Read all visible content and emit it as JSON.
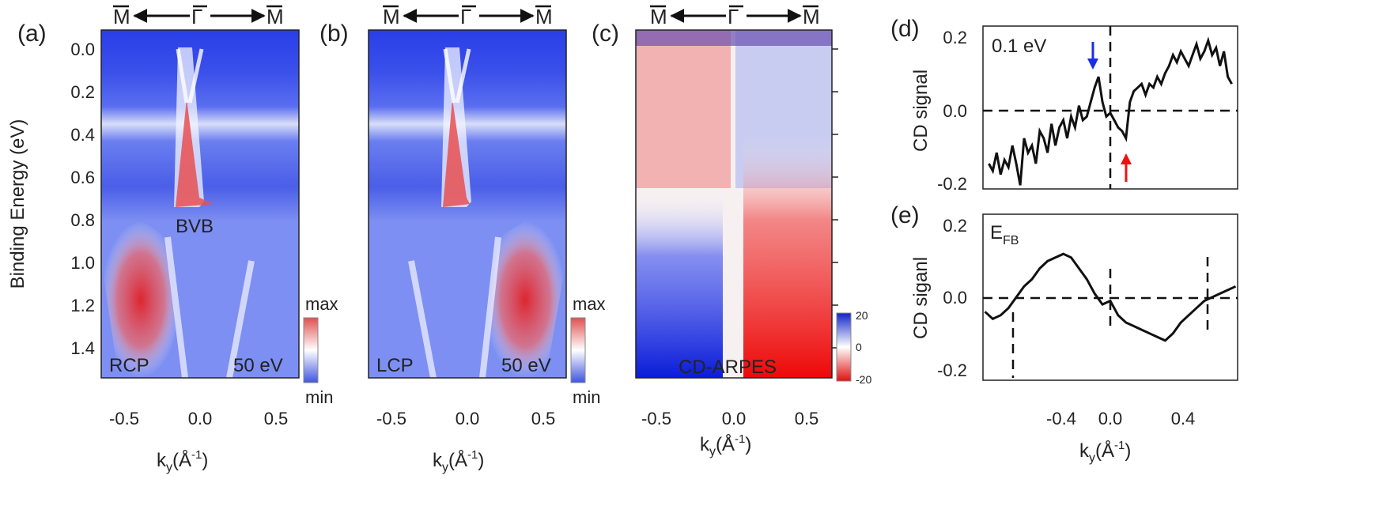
{
  "direction": {
    "left": "M",
    "center": "Γ",
    "right": "M"
  },
  "common": {
    "y_axis_label": "Binding Energy (eV)",
    "x_axis_k": "k",
    "x_axis_sub": "y",
    "x_axis_unit_open": "(Å",
    "x_axis_unit_exp": "-1",
    "x_axis_unit_close": ")"
  },
  "panels": {
    "a": {
      "label": "(a)",
      "pol": "RCP",
      "energy": "50 eV",
      "band_label": "BVB",
      "cbar_max": "max",
      "cbar_min": "min"
    },
    "b": {
      "label": "(b)",
      "pol": "LCP",
      "energy": "50 eV",
      "cbar_max": "max",
      "cbar_min": "min"
    },
    "c": {
      "label": "(c)",
      "title": "CD-ARPES",
      "cbar_ticks": [
        "20",
        "0",
        "-20"
      ]
    },
    "d": {
      "label": "(d)",
      "annotation": "0.1 eV",
      "ylabel": "CD signal"
    },
    "e": {
      "label": "(e)",
      "annotation_main": "E",
      "annotation_sub": "FB",
      "ylabel": "CD siganl"
    }
  },
  "colors": {
    "blue": "#1a2ee6",
    "red": "#ee1111",
    "white": "#ffffff",
    "trace": "#111111"
  },
  "chart_data": [
    {
      "id": "a",
      "type": "heatmap",
      "title": "RCP",
      "xlabel": "ky(Å-1)",
      "ylabel": "Binding Energy (eV)",
      "xlim": [
        -0.65,
        0.65
      ],
      "ylim": [
        1.52,
        -0.1
      ],
      "xticks": [
        "-0.5",
        "0.0",
        "0.5"
      ],
      "yticks": [
        "0.0",
        "0.2",
        "0.4",
        "0.6",
        "0.8",
        "1.0",
        "1.2",
        "1.4"
      ],
      "colorbar": [
        "min",
        "max"
      ]
    },
    {
      "id": "b",
      "type": "heatmap",
      "title": "LCP",
      "xlabel": "ky(Å-1)",
      "xlim": [
        -0.65,
        0.65
      ],
      "ylim": [
        1.52,
        -0.1
      ],
      "xticks": [
        "-0.5",
        "0.0",
        "0.5"
      ],
      "colorbar": [
        "min",
        "max"
      ]
    },
    {
      "id": "c",
      "type": "heatmap",
      "title": "CD-ARPES",
      "xlabel": "ky(Å-1)",
      "xlim": [
        -0.65,
        0.65
      ],
      "ylim": [
        1.52,
        -0.1
      ],
      "xticks": [
        "-0.5",
        "0.0",
        "0.5"
      ],
      "colorbar": [
        -20,
        0,
        20
      ]
    },
    {
      "id": "d",
      "type": "line",
      "title": "0.1 eV",
      "ylabel": "CD signal",
      "xlim": [
        -0.65,
        0.65
      ],
      "ylim": [
        -0.22,
        0.23
      ],
      "yticks": [
        "0.2",
        "0.0",
        "-0.2"
      ],
      "x": [
        -0.62,
        -0.6,
        -0.58,
        -0.56,
        -0.54,
        -0.52,
        -0.5,
        -0.48,
        -0.46,
        -0.44,
        -0.42,
        -0.4,
        -0.38,
        -0.36,
        -0.34,
        -0.32,
        -0.3,
        -0.28,
        -0.26,
        -0.24,
        -0.22,
        -0.2,
        -0.18,
        -0.16,
        -0.14,
        -0.12,
        -0.1,
        -0.08,
        -0.06,
        -0.04,
        -0.02,
        0.0,
        0.02,
        0.04,
        0.06,
        0.08,
        0.1,
        0.12,
        0.14,
        0.16,
        0.18,
        0.2,
        0.22,
        0.24,
        0.26,
        0.28,
        0.3,
        0.32,
        0.34,
        0.36,
        0.38,
        0.4,
        0.42,
        0.44,
        0.46,
        0.48,
        0.5,
        0.52,
        0.54,
        0.56,
        0.58,
        0.6,
        0.62
      ],
      "y": [
        -0.15,
        -0.17,
        -0.12,
        -0.18,
        -0.14,
        -0.16,
        -0.1,
        -0.15,
        -0.21,
        -0.08,
        -0.12,
        -0.1,
        -0.15,
        -0.06,
        -0.08,
        -0.12,
        -0.04,
        -0.1,
        -0.05,
        -0.03,
        -0.08,
        -0.02,
        -0.05,
        0.01,
        -0.03,
        -0.02,
        0.02,
        0.06,
        0.09,
        0.02,
        -0.02,
        -0.01,
        -0.03,
        -0.05,
        -0.06,
        -0.08,
        0.02,
        0.05,
        0.06,
        0.07,
        0.04,
        0.07,
        0.06,
        0.09,
        0.07,
        0.1,
        0.12,
        0.15,
        0.13,
        0.16,
        0.14,
        0.12,
        0.15,
        0.18,
        0.14,
        0.16,
        0.19,
        0.15,
        0.17,
        0.12,
        0.16,
        0.09,
        0.07
      ],
      "reference_lines": {
        "x0": 0.0,
        "y0": 0.0
      },
      "arrows": [
        {
          "x": -0.09,
          "color": "blue",
          "direction": "down"
        },
        {
          "x": 0.09,
          "color": "red",
          "direction": "up"
        }
      ]
    },
    {
      "id": "e",
      "type": "line",
      "title": "EFB",
      "xlabel": "ky(Å-1)",
      "ylabel": "CD siganl",
      "xlim": [
        -0.65,
        0.65
      ],
      "ylim": [
        -0.23,
        0.23
      ],
      "yticks": [
        "0.2",
        "0.0",
        "-0.2"
      ],
      "xticks": [
        "-0.4",
        "0.0",
        "0.4"
      ],
      "x": [
        -0.64,
        -0.6,
        -0.56,
        -0.52,
        -0.48,
        -0.44,
        -0.4,
        -0.36,
        -0.32,
        -0.28,
        -0.24,
        -0.2,
        -0.16,
        -0.12,
        -0.08,
        -0.04,
        0.0,
        0.04,
        0.08,
        0.12,
        0.16,
        0.2,
        0.24,
        0.28,
        0.32,
        0.36,
        0.4,
        0.44,
        0.48,
        0.52,
        0.56,
        0.6,
        0.64
      ],
      "y": [
        -0.04,
        -0.06,
        -0.05,
        -0.03,
        0.0,
        0.03,
        0.05,
        0.08,
        0.1,
        0.11,
        0.12,
        0.11,
        0.08,
        0.05,
        0.01,
        -0.02,
        -0.01,
        -0.05,
        -0.07,
        -0.08,
        -0.09,
        -0.1,
        -0.11,
        -0.12,
        -0.1,
        -0.07,
        -0.05,
        -0.03,
        -0.01,
        0.0,
        0.01,
        0.02,
        0.03
      ],
      "reference_lines": {
        "x": [
          -0.5,
          0.0,
          0.5
        ],
        "y0": 0.0
      }
    }
  ]
}
